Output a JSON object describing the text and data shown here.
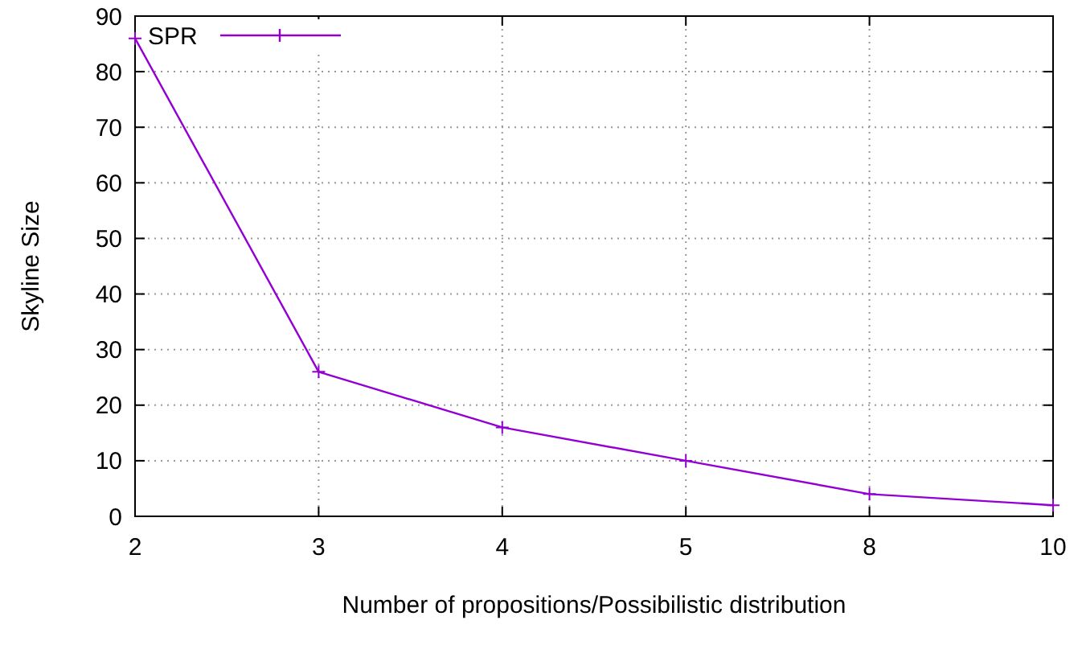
{
  "chart_data": {
    "type": "line",
    "xlabel": "Number of propositions/Possibilistic distribution",
    "ylabel": "Skyline Size",
    "categories": [
      "2",
      "3",
      "4",
      "5",
      "8",
      "10"
    ],
    "series": [
      {
        "name": "SPR",
        "color": "#9400d3",
        "values": [
          86,
          26,
          16,
          10,
          4,
          2
        ]
      }
    ],
    "ylim": [
      0,
      90
    ],
    "yticks": [
      0,
      10,
      20,
      30,
      40,
      50,
      60,
      70,
      80,
      90
    ],
    "grid": true,
    "legend": "top left",
    "marker": "cross",
    "line_style": "solid"
  }
}
